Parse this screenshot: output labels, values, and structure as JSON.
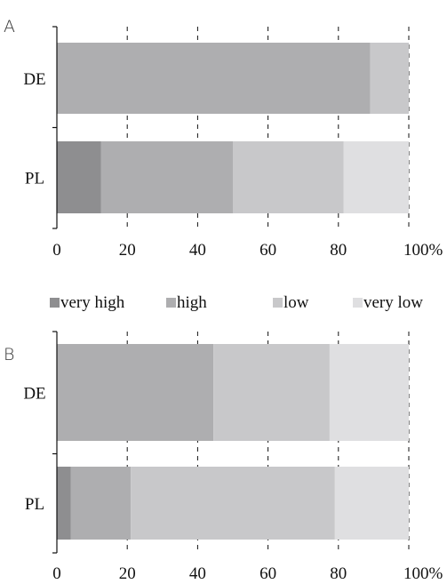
{
  "legend": {
    "entries": [
      {
        "label": "very high",
        "color": "#8e8e90"
      },
      {
        "label": "high",
        "color": "#aeaeb0"
      },
      {
        "label": "low",
        "color": "#c8c8ca"
      },
      {
        "label": "very low",
        "color": "#dfdfe1"
      }
    ]
  },
  "chart_data": [
    {
      "type": "bar",
      "orientation": "horizontal",
      "stacked": true,
      "panel_label": "A",
      "categories": [
        "DE",
        "PL"
      ],
      "series": [
        {
          "name": "very high",
          "color": "#8e8e90",
          "values": [
            0,
            12.5
          ]
        },
        {
          "name": "high",
          "color": "#aeaeb0",
          "values": [
            89,
            37.5
          ]
        },
        {
          "name": "low",
          "color": "#c8c8ca",
          "values": [
            11,
            31.5
          ]
        },
        {
          "name": "very low",
          "color": "#dfdfe1",
          "values": [
            0,
            18.5
          ]
        }
      ],
      "xlim": [
        0,
        100
      ],
      "x_ticks": [
        "0",
        "20",
        "40",
        "60",
        "80",
        "100%"
      ],
      "grid": "vertical dashed at 20, 40, 60, 80, 100"
    },
    {
      "type": "bar",
      "orientation": "horizontal",
      "stacked": true,
      "panel_label": "B",
      "categories": [
        "DE",
        "PL"
      ],
      "series": [
        {
          "name": "very high",
          "color": "#8e8e90",
          "values": [
            0,
            4
          ]
        },
        {
          "name": "high",
          "color": "#aeaeb0",
          "values": [
            44.5,
            17
          ]
        },
        {
          "name": "low",
          "color": "#c8c8ca",
          "values": [
            33,
            58
          ]
        },
        {
          "name": "very low",
          "color": "#dfdfe1",
          "values": [
            22.5,
            21
          ]
        }
      ],
      "xlim": [
        0,
        100
      ],
      "x_ticks": [
        "0",
        "20",
        "40",
        "60",
        "80",
        "100%"
      ],
      "grid": "vertical dashed at 20, 40, 60, 80, 100"
    }
  ]
}
